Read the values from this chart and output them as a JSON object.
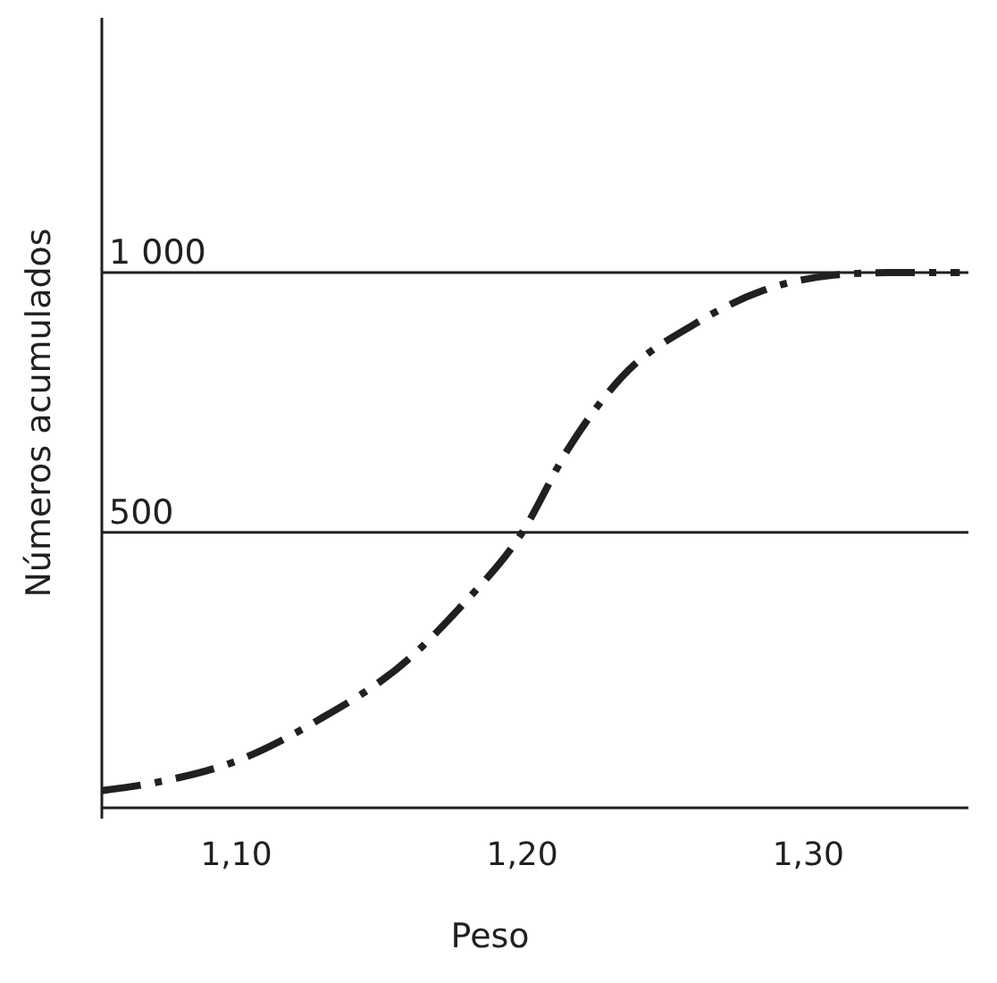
{
  "chart_data": {
    "type": "line",
    "xlabel": "Peso",
    "ylabel": "Números acumulados",
    "x": [
      1.053,
      1.073,
      1.1,
      1.129,
      1.16,
      1.179,
      1.2,
      1.216,
      1.235,
      1.26,
      1.284,
      1.309,
      1.328,
      1.353
    ],
    "series": [
      {
        "color": "#231f20",
        "values": [
          3,
          20,
          60,
          140,
          255,
          360,
          500,
          660,
          800,
          900,
          965,
          995,
          1000,
          1000
        ]
      }
    ],
    "xlim": [
      1.053,
      1.356
    ],
    "xticks": [
      {
        "value": 1.1,
        "label": "1,10"
      },
      {
        "value": 1.2,
        "label": "1,20"
      },
      {
        "value": 1.3,
        "label": "1,30"
      }
    ],
    "ylim": [
      -30,
      1490
    ],
    "yticks": [
      {
        "value": 500,
        "label": "500"
      },
      {
        "value": 1000,
        "label": "1 000"
      }
    ],
    "grid": "y",
    "line_style": "dashed",
    "marker": "none"
  }
}
